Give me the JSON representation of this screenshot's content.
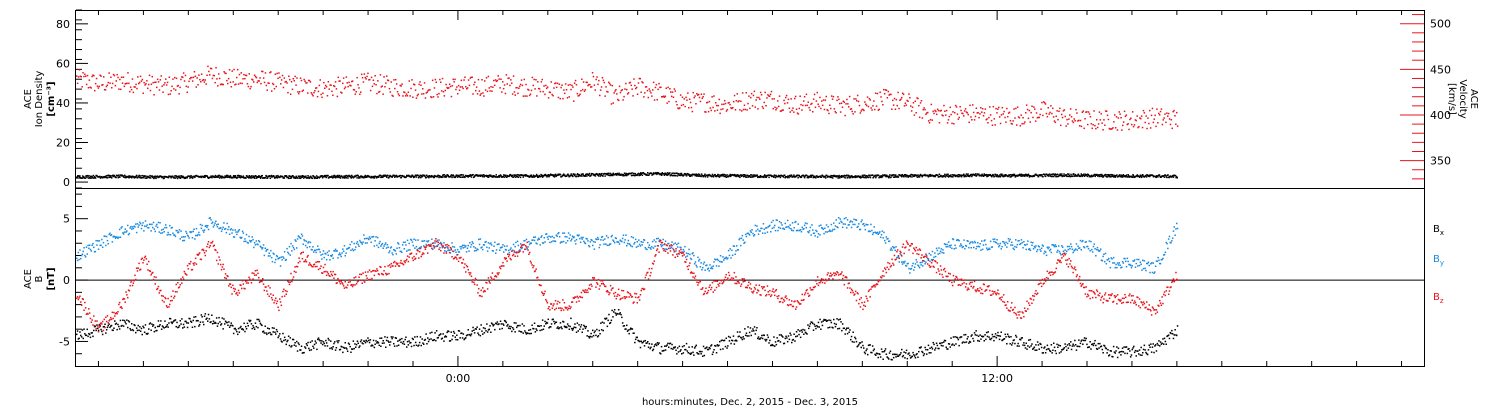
{
  "colors": {
    "black": "#000000",
    "red": "#e8141c",
    "blue": "#1a8ae0"
  },
  "xlabel": "hours:minutes, Dec.  2, 2015 - Dec.  3, 2015",
  "chart_data": [
    {
      "type": "scatter",
      "panel": "top",
      "ylabel_left": [
        "ACE",
        "Ion Density",
        "[cm⁻³]"
      ],
      "ylabel_right": [
        "ACE",
        "Velocity",
        "[km/s]"
      ],
      "ylim_left": [
        -3,
        87
      ],
      "ylim_right": [
        320,
        515
      ],
      "ticks_left": [
        0,
        20,
        40,
        60,
        80
      ],
      "ticks_right": [
        350,
        400,
        450,
        500
      ],
      "xlim_hours": [
        -8.5,
        21.5
      ],
      "xticks": [
        {
          "h": 0,
          "label": "0:00"
        },
        {
          "h": 12,
          "label": "12:00"
        }
      ],
      "series": [
        {
          "axis": "right",
          "color": "red",
          "x": [
            -8.5,
            -8.0,
            -7.5,
            -7.0,
            -6.5,
            -6.0,
            -5.5,
            -5.0,
            -4.5,
            -4.0,
            -3.5,
            -3.0,
            -2.5,
            -2.0,
            -1.5,
            -1.0,
            -0.5,
            0.0,
            0.5,
            1.0,
            1.5,
            2.0,
            2.5,
            3.0,
            3.5,
            4.0,
            4.5,
            5.0,
            5.5,
            6.0,
            6.5,
            7.0,
            7.5,
            8.0,
            8.5,
            9.0,
            9.5,
            10.0,
            10.5,
            11.0,
            11.5,
            12.0,
            12.5,
            13.0,
            13.5,
            14.0,
            14.5,
            15.0,
            15.5,
            16.0
          ],
          "y": [
            440,
            435,
            438,
            435,
            432,
            437,
            445,
            440,
            440,
            436,
            432,
            430,
            432,
            436,
            432,
            430,
            430,
            432,
            432,
            435,
            432,
            430,
            425,
            438,
            420,
            432,
            425,
            415,
            415,
            412,
            418,
            418,
            412,
            415,
            410,
            414,
            418,
            414,
            402,
            402,
            402,
            400,
            400,
            405,
            398,
            395,
            395,
            395,
            398,
            396
          ]
        },
        {
          "axis": "left",
          "color": "black",
          "x": [
            -8.5,
            -7.5,
            -6.5,
            -5.5,
            -4.5,
            -3.5,
            -2.5,
            -1.5,
            -0.5,
            0.5,
            1.5,
            2.5,
            3.5,
            4.5,
            5.5,
            6.5,
            7.5,
            8.5,
            9.5,
            10.5,
            11.5,
            12.5,
            13.5,
            14.5,
            15.5,
            16.0
          ],
          "y": [
            3,
            3.2,
            2.8,
            3.1,
            3,
            2.9,
            3.1,
            3.2,
            3.3,
            3.5,
            3.4,
            3.8,
            4.2,
            4.5,
            3.6,
            3.4,
            3.2,
            3.1,
            3.3,
            3.6,
            3.8,
            3.6,
            3.9,
            3.5,
            3.4,
            3.2
          ]
        }
      ]
    },
    {
      "type": "scatter",
      "panel": "bottom",
      "ylabel_left": [
        "ACE",
        "B",
        "[nT]"
      ],
      "ylim_left": [
        -7,
        7.5
      ],
      "ticks_left": [
        -5,
        0,
        5
      ],
      "xlim_hours": [
        -8.5,
        21.5
      ],
      "xticks": [
        {
          "h": 0,
          "label": "0:00"
        },
        {
          "h": 12,
          "label": "12:00"
        }
      ],
      "legend": [
        {
          "label": "Bx",
          "base": "B",
          "sub": "x",
          "color": "black"
        },
        {
          "label": "By",
          "base": "B",
          "sub": "y",
          "color": "blue"
        },
        {
          "label": "Bz",
          "base": "B",
          "sub": "z",
          "color": "red"
        }
      ],
      "legend_placement": "right",
      "zero_line": true,
      "series": [
        {
          "name": "Bx",
          "color": "black",
          "x": [
            -8.5,
            -8.0,
            -7.5,
            -7.0,
            -6.5,
            -6.0,
            -5.5,
            -5.0,
            -4.5,
            -4.0,
            -3.5,
            -3.0,
            -2.5,
            -2.0,
            -1.5,
            -1.0,
            -0.5,
            0.0,
            0.5,
            1.0,
            1.5,
            2.0,
            2.5,
            3.0,
            3.5,
            4.0,
            4.5,
            5.0,
            5.5,
            6.0,
            6.5,
            7.0,
            7.5,
            8.0,
            8.5,
            9.0,
            9.5,
            10.0,
            10.5,
            11.0,
            11.5,
            12.0,
            12.5,
            13.0,
            13.5,
            14.0,
            14.5,
            15.0,
            15.5,
            16.0
          ],
          "y": [
            -4.5,
            -4,
            -3.5,
            -4,
            -3.5,
            -3.5,
            -3,
            -4,
            -3.5,
            -4.5,
            -5.5,
            -5,
            -5.5,
            -5,
            -5,
            -5,
            -4.5,
            -4.5,
            -4,
            -3.5,
            -4,
            -3.5,
            -3.5,
            -4.5,
            -2.5,
            -5,
            -5.5,
            -5.5,
            -5.8,
            -5,
            -4,
            -5,
            -4.5,
            -3.5,
            -3.5,
            -5.5,
            -6,
            -6,
            -5.5,
            -5,
            -4.5,
            -4.5,
            -5,
            -5.5,
            -5.5,
            -5,
            -5.8,
            -5.8,
            -5.5,
            -4
          ]
        },
        {
          "name": "By",
          "color": "blue",
          "x": [
            -8.5,
            -8.0,
            -7.5,
            -7.0,
            -6.5,
            -6.0,
            -5.5,
            -5.0,
            -4.5,
            -4.0,
            -3.5,
            -3.0,
            -2.5,
            -2.0,
            -1.5,
            -1.0,
            -0.5,
            0.0,
            0.5,
            1.0,
            1.5,
            2.0,
            2.5,
            3.0,
            3.5,
            4.0,
            4.5,
            5.0,
            5.5,
            6.0,
            6.5,
            7.0,
            7.5,
            8.0,
            8.5,
            9.0,
            9.5,
            10.0,
            10.5,
            11.0,
            11.5,
            12.0,
            12.5,
            13.0,
            13.5,
            14.0,
            14.5,
            15.0,
            15.5,
            16.0
          ],
          "y": [
            2,
            3,
            4,
            4.5,
            4.2,
            3.5,
            4.8,
            4,
            3,
            1.5,
            3.5,
            2,
            2.5,
            3.5,
            2.5,
            3,
            3,
            2.5,
            3,
            2.5,
            3,
            3.5,
            3.5,
            3,
            3.5,
            3,
            3,
            2.5,
            1,
            2,
            4,
            4.5,
            4.5,
            4,
            4.8,
            4.5,
            3.5,
            1,
            2,
            3,
            2.8,
            3,
            3,
            2.5,
            2.5,
            3,
            1.5,
            1.5,
            1,
            4.5
          ]
        },
        {
          "name": "Bz",
          "color": "red",
          "x": [
            -8.5,
            -8.0,
            -7.5,
            -7.0,
            -6.5,
            -6.0,
            -5.5,
            -5.0,
            -4.5,
            -4.0,
            -3.5,
            -3.0,
            -2.5,
            -2.0,
            -1.5,
            -1.0,
            -0.5,
            0.0,
            0.5,
            1.0,
            1.5,
            2.0,
            2.5,
            3.0,
            3.5,
            4.0,
            4.5,
            5.0,
            5.5,
            6.0,
            6.5,
            7.0,
            7.5,
            8.0,
            8.5,
            9.0,
            9.5,
            10.0,
            10.5,
            11.0,
            11.5,
            12.0,
            12.5,
            13.0,
            13.5,
            14.0,
            14.5,
            15.0,
            15.5,
            16.0
          ],
          "y": [
            -1,
            -4,
            -2,
            2,
            -2,
            1,
            3,
            -1,
            0.5,
            -2,
            2,
            1,
            -0.5,
            0.5,
            1,
            2,
            3,
            2,
            -1,
            1.5,
            3,
            -2,
            -2,
            0,
            -1,
            -1.5,
            3,
            2,
            -1,
            0.5,
            -0.5,
            -1,
            -2,
            0,
            0.5,
            -2,
            1,
            3,
            1.5,
            0,
            -0.5,
            -1,
            -3,
            0,
            2,
            -1,
            -1.5,
            -1.5,
            -2.5,
            0.5
          ]
        }
      ]
    }
  ]
}
